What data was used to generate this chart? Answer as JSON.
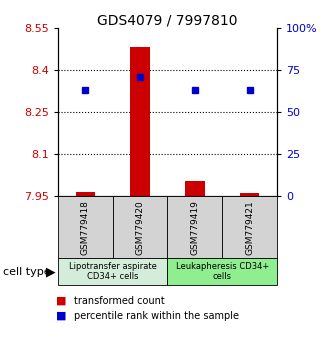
{
  "title": "GDS4079 / 7997810",
  "samples": [
    "GSM779418",
    "GSM779420",
    "GSM779419",
    "GSM779421"
  ],
  "red_values": [
    7.966,
    8.485,
    8.005,
    7.962
  ],
  "blue_values": [
    8.33,
    8.375,
    8.33,
    8.33
  ],
  "ylim_left": [
    7.95,
    8.55
  ],
  "ylim_right": [
    0,
    100
  ],
  "yticks_left": [
    7.95,
    8.1,
    8.25,
    8.4,
    8.55
  ],
  "yticks_right": [
    0,
    25,
    50,
    75,
    100
  ],
  "ytick_labels_left": [
    "7.95",
    "8.1",
    "8.25",
    "8.4",
    "8.55"
  ],
  "ytick_labels_right": [
    "0",
    "25",
    "50",
    "75",
    "100%"
  ],
  "hlines": [
    8.1,
    8.25,
    8.4
  ],
  "bar_bottom": 7.95,
  "red_color": "#cc0000",
  "blue_color": "#0000cc",
  "group1_label": "Lipotransfer aspirate\nCD34+ cells",
  "group2_label": "Leukapheresis CD34+\ncells",
  "group1_color": "#d4edda",
  "group2_color": "#90ee90",
  "cell_type_label": "cell type",
  "legend_red": "transformed count",
  "legend_blue": "percentile rank within the sample",
  "title_fontsize": 10,
  "tick_fontsize": 8,
  "label_fontsize": 8
}
